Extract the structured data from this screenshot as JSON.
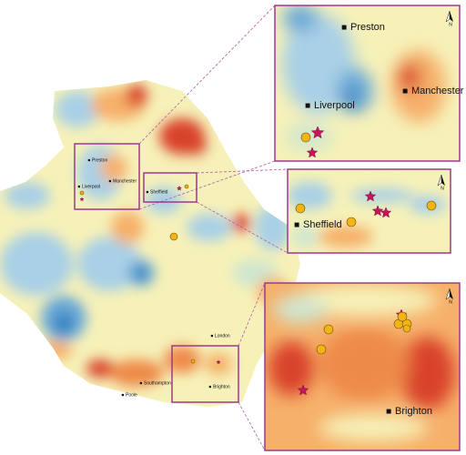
{
  "main_map": {
    "labels": [
      "Preston",
      "Liverpool",
      "Manchester",
      "Sheffield",
      "London",
      "Southampton",
      "Poole",
      "Brighton"
    ]
  },
  "insets": [
    {
      "labels": [
        "Preston",
        "Liverpool",
        "Manchester"
      ],
      "north": "N"
    },
    {
      "labels": [
        "Sheffield"
      ],
      "north": "N"
    },
    {
      "labels": [
        "Brighton"
      ],
      "north": "N"
    }
  ]
}
